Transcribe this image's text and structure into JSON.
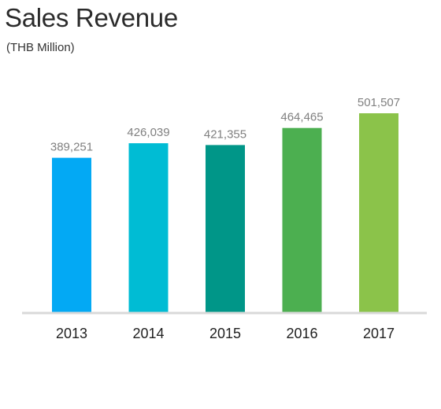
{
  "chart_data": {
    "type": "bar",
    "title": "Sales Revenue",
    "subtitle": "(THB Million)",
    "categories": [
      "2013",
      "2014",
      "2015",
      "2016",
      "2017"
    ],
    "values": [
      389251,
      426039,
      421355,
      464465,
      501507
    ],
    "value_labels": [
      "389,251",
      "426,039",
      "421,355",
      "464,465",
      "501,507"
    ],
    "bar_colors": [
      "#03A9F4",
      "#00BCD4",
      "#009688",
      "#4CAF50",
      "#8BC34A"
    ],
    "axis_line_color": "#d9d9d9",
    "xlabel": "",
    "ylabel": "",
    "grid": false,
    "legend": "none"
  }
}
